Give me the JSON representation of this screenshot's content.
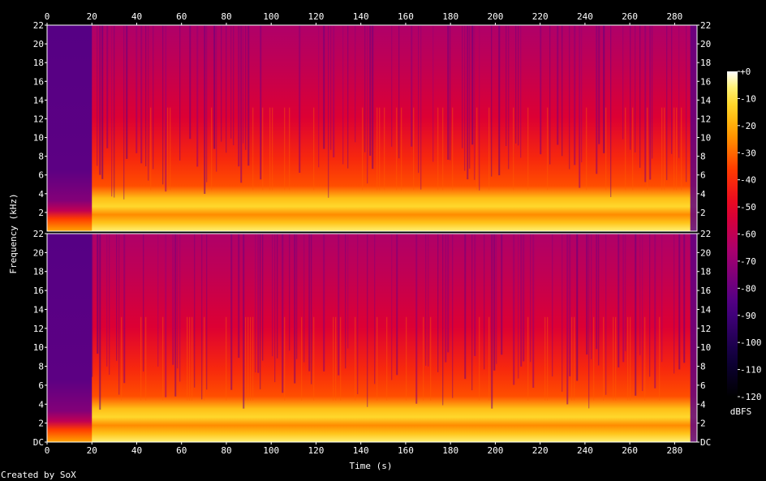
{
  "chart_data": {
    "type": "heatmap",
    "title": "",
    "xlabel": "Time (s)",
    "ylabel": "Frequency (kHz)",
    "xlim": [
      0,
      290
    ],
    "ylim": [
      0,
      22
    ],
    "x_ticks": [
      "0",
      "20",
      "40",
      "60",
      "80",
      "100",
      "120",
      "140",
      "160",
      "180",
      "200",
      "220",
      "240",
      "260",
      "280"
    ],
    "x_tick_values": [
      0,
      20,
      40,
      60,
      80,
      100,
      120,
      140,
      160,
      180,
      200,
      220,
      240,
      260,
      280
    ],
    "channels": [
      {
        "y_ticks": [
          "22",
          "20",
          "18",
          "16",
          "14",
          "12",
          "10",
          "8",
          "6",
          "4",
          "2"
        ],
        "y_tick_values": [
          22,
          20,
          18,
          16,
          14,
          12,
          10,
          8,
          6,
          4,
          2
        ]
      },
      {
        "y_ticks": [
          "22",
          "20",
          "18",
          "16",
          "14",
          "12",
          "10",
          "8",
          "6",
          "4",
          "2",
          "DC"
        ],
        "y_tick_values": [
          22,
          20,
          18,
          16,
          14,
          12,
          10,
          8,
          6,
          4,
          2,
          0
        ]
      }
    ],
    "colorbar": {
      "label": "dBFS",
      "range": [
        -120,
        0
      ],
      "ticks": [
        "+0",
        "-10",
        "-20",
        "-30",
        "-40",
        "-50",
        "-60",
        "-70",
        "-80",
        "-90",
        "-100",
        "-110",
        "-120"
      ],
      "tick_values": [
        0,
        -10,
        -20,
        -30,
        -40,
        -50,
        -60,
        -70,
        -80,
        -90,
        -100,
        -110,
        -120
      ]
    },
    "segments": [
      {
        "start": 0,
        "end": 20,
        "level": "quiet intro, energy mostly below 3 kHz"
      },
      {
        "start": 20,
        "end": 287,
        "level": "full-band content, strongest 1-5 kHz"
      },
      {
        "start": 287,
        "end": 290,
        "level": "fade out"
      }
    ],
    "footer": "Created by SoX"
  }
}
